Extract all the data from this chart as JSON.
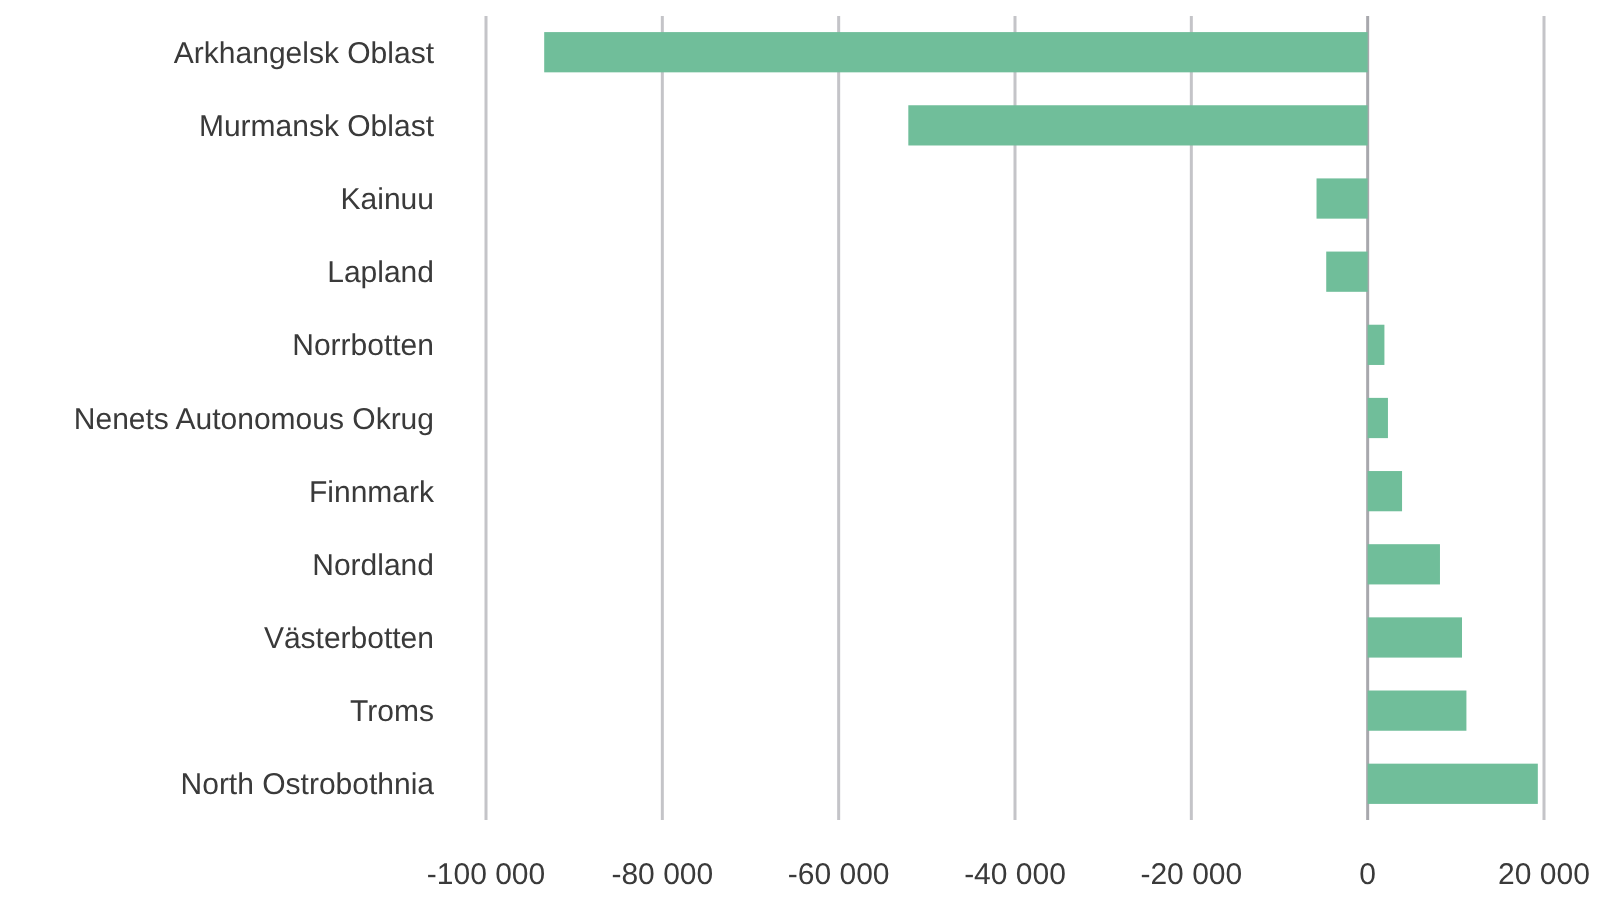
{
  "chart_data": {
    "type": "bar",
    "orientation": "horizontal",
    "categories": [
      "Arkhangelsk Oblast",
      "Murmansk Oblast",
      "Kainuu",
      "Lapland",
      "Norrbotten",
      "Nenets Autonomous Okrug",
      "Finnmark",
      "Nordland",
      "Västerbotten",
      "Troms",
      "North Ostrobothnia"
    ],
    "values": [
      -93400,
      -52100,
      -5800,
      -4700,
      1900,
      2300,
      3900,
      8200,
      10700,
      11200,
      19300
    ],
    "color": "#70be9a",
    "xlim": [
      -100000,
      20000
    ],
    "xticks": [
      {
        "value": -100000,
        "label": "-100 000"
      },
      {
        "value": -80000,
        "label": "-80 000"
      },
      {
        "value": -60000,
        "label": "-60 000"
      },
      {
        "value": -40000,
        "label": "-40 000"
      },
      {
        "value": -20000,
        "label": "-20 000"
      },
      0,
      {
        "value": 20000,
        "label": "20 000"
      }
    ],
    "grid": "x"
  }
}
